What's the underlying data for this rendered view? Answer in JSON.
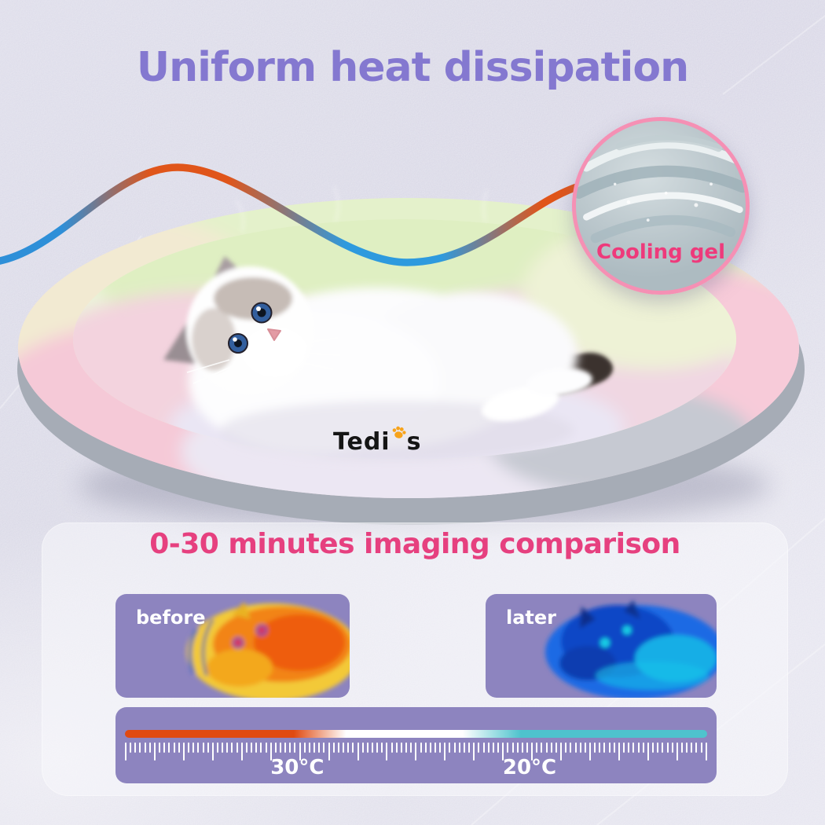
{
  "title": "Uniform heat dissipation",
  "brand": {
    "prefix": "Tedi",
    "suffix": "s"
  },
  "gel": {
    "label": "Cooling gel"
  },
  "comparison": {
    "heading": "0-30 minutes imaging comparison",
    "panels": [
      {
        "label": "before",
        "state": "warm-thermal-image"
      },
      {
        "label": "later",
        "state": "cool-thermal-image"
      }
    ],
    "scale": {
      "tick_count": 121,
      "long_tick_every": 6,
      "gradient_stops": [
        {
          "color": "#e04a11",
          "at_pct": 0
        },
        {
          "color": "#e04a11",
          "at_pct": 29
        },
        {
          "color": "#ffffff",
          "at_pct": 38
        },
        {
          "color": "#ffffff",
          "at_pct": 58
        },
        {
          "color": "#4ec3cd",
          "at_pct": 68
        },
        {
          "color": "#4ec3cd",
          "at_pct": 100
        }
      ],
      "labels": [
        {
          "text": "30°C",
          "position_pct": 29.6
        },
        {
          "text": "20°C",
          "position_pct": 69.5
        }
      ]
    }
  },
  "colors": {
    "title_purple": "#8478d0",
    "heading_pink": "#e6407f",
    "panel_purple": "#8d84bf",
    "gel_label_pink": "#ee3a7b",
    "gel_ring_pink": "#f590b4",
    "wave_blue": "#2e8fd8",
    "wave_orange": "#e0551a",
    "bar_orange": "#e04a11",
    "bar_teal": "#4ec3cd",
    "brand_paw_orange": "#f7a31b"
  }
}
